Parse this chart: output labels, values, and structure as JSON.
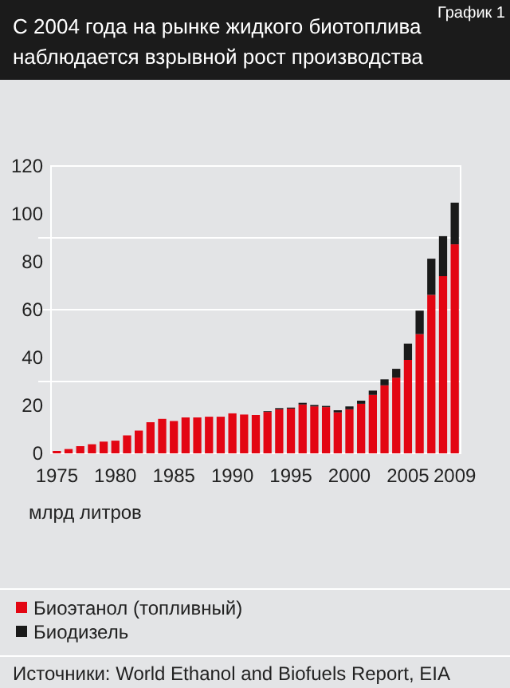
{
  "chart_data": {
    "type": "bar",
    "title": "С 2004 года на рынке жидкого биотоплива наблюдается взрывной рост производства",
    "annotations": [
      "График 1",
      "млрд литров",
      "Источники: World Ethanol and Biofuels Report, EIA"
    ],
    "categories": [
      "1975",
      null,
      null,
      null,
      null,
      "1980",
      null,
      null,
      null,
      null,
      "1985",
      null,
      null,
      null,
      null,
      "1990",
      null,
      null,
      null,
      null,
      "1995",
      null,
      null,
      null,
      null,
      "2000",
      null,
      null,
      null,
      null,
      "2005",
      null,
      null,
      null,
      "2009"
    ],
    "stacked": true,
    "series": [
      {
        "name": "Биоэтанол (топливный)",
        "color": "#e30613",
        "values": [
          1,
          1.8,
          3,
          3.8,
          4.9,
          5.3,
          7.5,
          9.5,
          13,
          14.4,
          13.5,
          15,
          15,
          15.3,
          15.3,
          16.7,
          16.2,
          16,
          17.3,
          18.4,
          18.7,
          20.4,
          19.6,
          19.3,
          17.1,
          18.4,
          20.7,
          24.4,
          28.4,
          31.6,
          39,
          49.8,
          66.2,
          74,
          87.3
        ]
      },
      {
        "name": "Биодизель",
        "color": "#1a1a1a",
        "values": [
          0,
          0,
          0,
          0,
          0,
          0,
          0,
          0,
          0,
          0,
          0,
          0,
          0,
          0,
          0,
          0,
          0,
          0,
          0.3,
          0.5,
          0.4,
          0.7,
          0.6,
          0.5,
          0.9,
          1.2,
          1.3,
          1.8,
          2.5,
          3.7,
          6.8,
          9.8,
          15.1,
          16.7,
          17.4
        ]
      }
    ],
    "ylim": [
      0,
      120
    ],
    "yticks": [
      0,
      20,
      40,
      60,
      80,
      100,
      120
    ],
    "ref_lines": [
      {
        "axis": "y",
        "value": 30,
        "color": "#ffffff"
      },
      {
        "axis": "y",
        "value": 60,
        "color": "#ffffff"
      },
      {
        "axis": "y",
        "value": 90,
        "color": "#ffffff"
      }
    ],
    "legend": "bottom left"
  }
}
